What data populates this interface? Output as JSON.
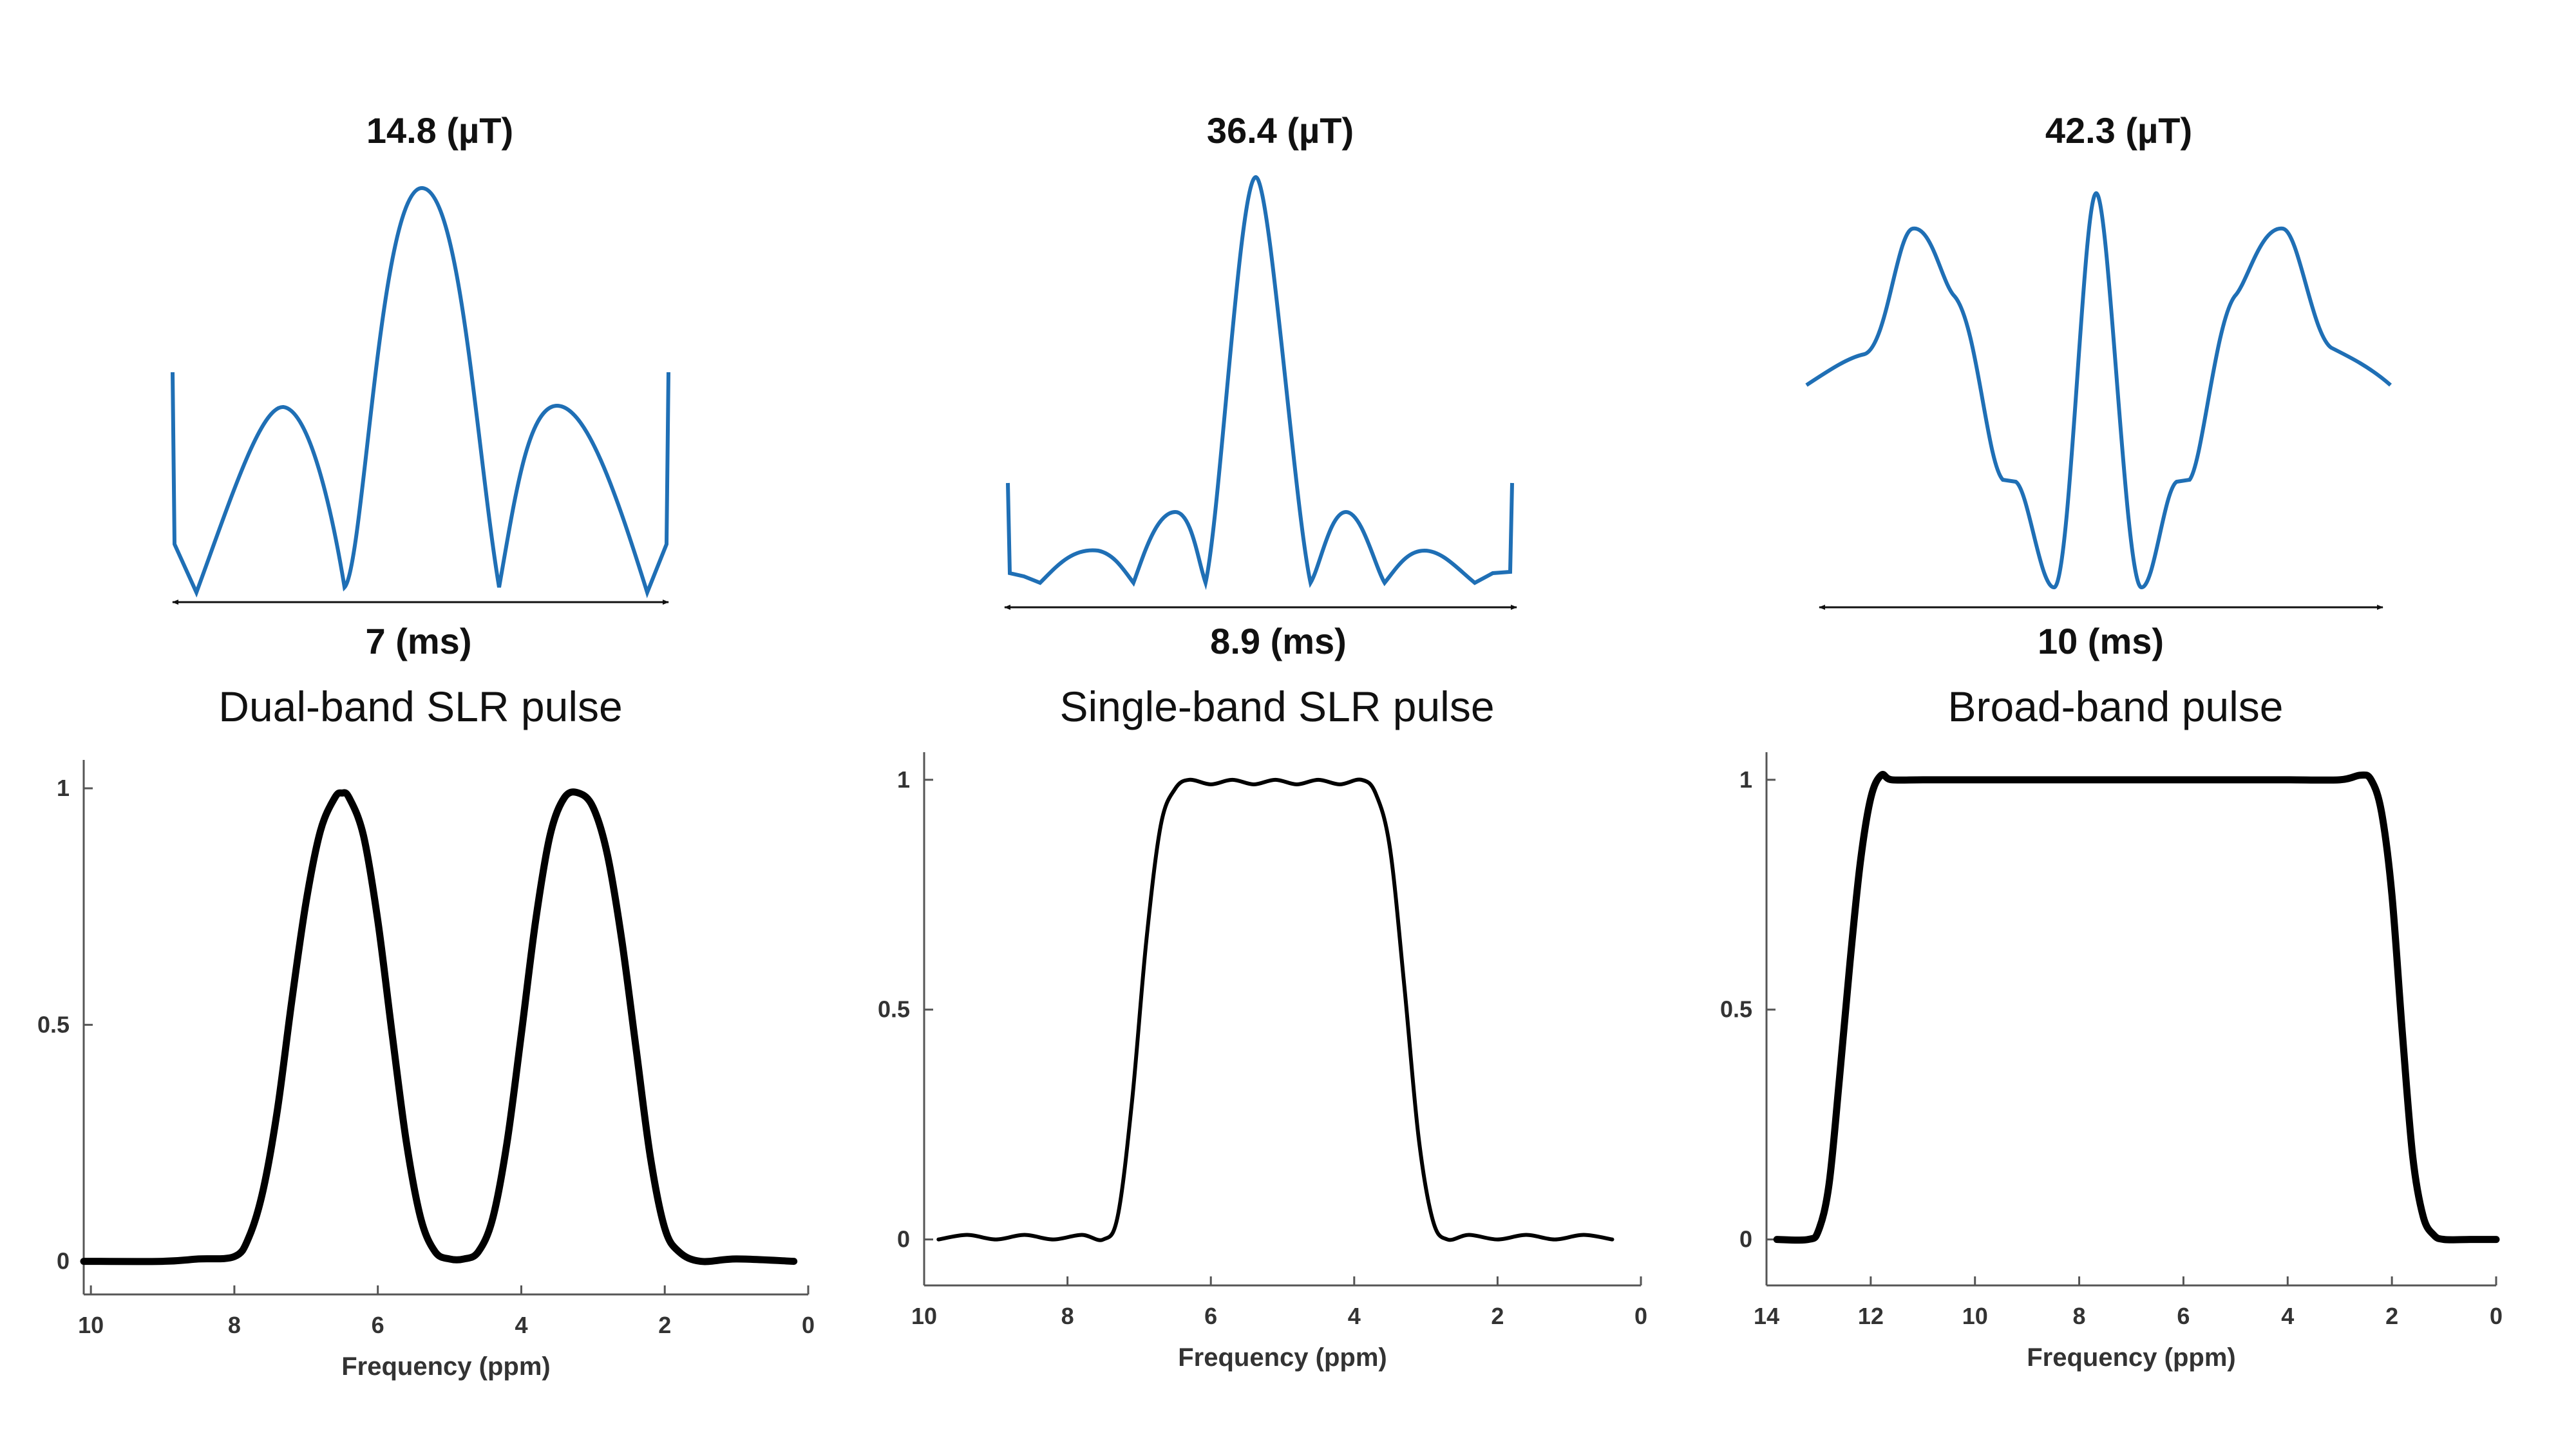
{
  "colors": {
    "pulse": "#1f6fb5",
    "profile": "#000000",
    "axis": "#555555",
    "text": "#111111"
  },
  "panels": [
    {
      "id": "dual",
      "amplitude_label": "14.8 (µT)",
      "duration_label": "7 (ms)",
      "waveform_shape": "dual-band",
      "title": "Dual-band SLR pulse"
    },
    {
      "id": "single",
      "amplitude_label": "36.4 (µT)",
      "duration_label": "8.9 (ms)",
      "waveform_shape": "single-band",
      "title": "Single-band SLR pulse"
    },
    {
      "id": "broad",
      "amplitude_label": "42.3 (µT)",
      "duration_label": "10 (ms)",
      "waveform_shape": "broad-band",
      "title": "Broad-band pulse"
    }
  ],
  "chart_data": [
    {
      "type": "line",
      "title": "Dual-band SLR pulse",
      "xlabel": "Frequency (ppm)",
      "ylabel": "",
      "xlim": [
        10.1,
        0
      ],
      "ylim": [
        -0.07,
        1.06
      ],
      "xticks": [
        "10",
        "8",
        "6",
        "4",
        "2",
        "0"
      ],
      "yticks": [
        "0",
        "0.5",
        "1"
      ],
      "series": [
        {
          "name": "Dual-band SLR profile",
          "x": [
            10.1,
            9.0,
            8.5,
            8.0,
            7.8,
            7.6,
            7.4,
            7.2,
            7.0,
            6.8,
            6.6,
            6.5,
            6.4,
            6.2,
            6.0,
            5.8,
            5.6,
            5.4,
            5.2,
            5.0,
            4.8,
            4.6,
            4.4,
            4.2,
            4.0,
            3.8,
            3.6,
            3.4,
            3.2,
            3.0,
            2.8,
            2.6,
            2.4,
            2.2,
            2.0,
            1.8,
            1.5,
            1.0,
            0.2
          ],
          "y": [
            0.0,
            0.0,
            0.005,
            0.01,
            0.05,
            0.15,
            0.32,
            0.55,
            0.76,
            0.91,
            0.98,
            0.99,
            0.98,
            0.9,
            0.72,
            0.48,
            0.25,
            0.09,
            0.02,
            0.005,
            0.005,
            0.02,
            0.09,
            0.25,
            0.48,
            0.72,
            0.9,
            0.98,
            0.99,
            0.96,
            0.86,
            0.68,
            0.45,
            0.22,
            0.07,
            0.02,
            0.0,
            0.005,
            0.0
          ]
        }
      ]
    },
    {
      "type": "line",
      "title": "Single-band SLR pulse",
      "xlabel": "Frequency (ppm)",
      "ylabel": "",
      "xlim": [
        10,
        0
      ],
      "ylim": [
        -0.1,
        1.06
      ],
      "xticks": [
        "10",
        "8",
        "6",
        "4",
        "2",
        "0"
      ],
      "yticks": [
        "0",
        "0.5",
        "1"
      ],
      "series": [
        {
          "name": "Single-band SLR profile",
          "x": [
            9.8,
            9.4,
            9.0,
            8.6,
            8.2,
            7.8,
            7.5,
            7.3,
            7.1,
            6.9,
            6.7,
            6.5,
            6.3,
            6.0,
            5.7,
            5.4,
            5.1,
            4.8,
            4.5,
            4.2,
            3.9,
            3.7,
            3.5,
            3.3,
            3.1,
            2.9,
            2.7,
            2.4,
            2.0,
            1.6,
            1.2,
            0.8,
            0.4
          ],
          "y": [
            0.0,
            0.01,
            0.0,
            0.01,
            0.0,
            0.01,
            0.0,
            0.05,
            0.3,
            0.65,
            0.9,
            0.98,
            1.0,
            0.99,
            1.0,
            0.99,
            1.0,
            0.99,
            1.0,
            0.99,
            1.0,
            0.97,
            0.85,
            0.55,
            0.22,
            0.04,
            0.0,
            0.01,
            0.0,
            0.01,
            0.0,
            0.01,
            0.0
          ]
        }
      ]
    },
    {
      "type": "line",
      "title": "Broad-band pulse",
      "xlabel": "Frequency (ppm)",
      "ylabel": "",
      "xlim": [
        14,
        0
      ],
      "ylim": [
        -0.1,
        1.06
      ],
      "xticks": [
        "14",
        "12",
        "10",
        "8",
        "6",
        "4",
        "2",
        "0"
      ],
      "yticks": [
        "0",
        "0.5",
        "1"
      ],
      "series": [
        {
          "name": "Broad-band profile",
          "x": [
            13.8,
            13.2,
            13.0,
            12.8,
            12.6,
            12.4,
            12.2,
            12.0,
            11.8,
            11.6,
            11.0,
            10.0,
            9.0,
            8.0,
            7.0,
            6.0,
            5.0,
            4.0,
            3.0,
            2.6,
            2.4,
            2.2,
            2.0,
            1.8,
            1.6,
            1.4,
            1.2,
            1.0,
            0.5,
            0.0
          ],
          "y": [
            0.0,
            0.0,
            0.02,
            0.12,
            0.35,
            0.6,
            0.82,
            0.96,
            1.01,
            1.0,
            1.0,
            1.0,
            1.0,
            1.0,
            1.0,
            1.0,
            1.0,
            1.0,
            1.0,
            1.01,
            1.0,
            0.93,
            0.75,
            0.45,
            0.18,
            0.05,
            0.01,
            0.0,
            0.0,
            0.0
          ]
        }
      ]
    }
  ]
}
